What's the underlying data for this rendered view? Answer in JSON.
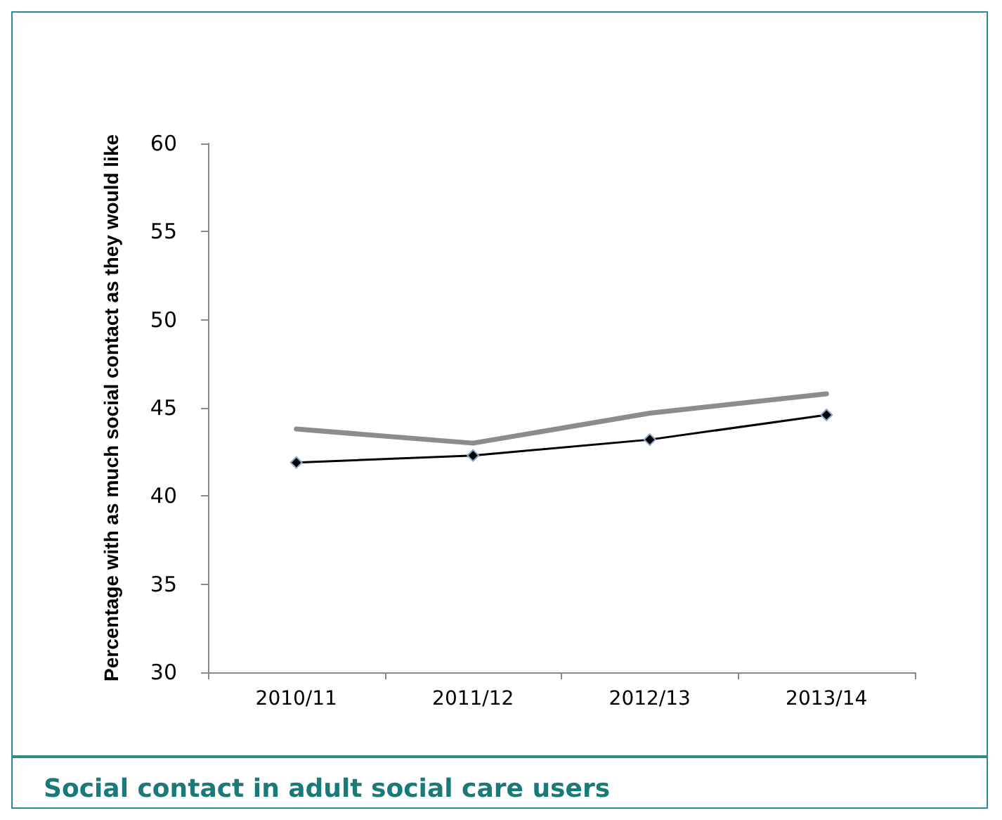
{
  "chart_data": {
    "type": "line",
    "title": "Social contact in adult social care users",
    "ylabel": "Percentage with as much social contact as they would like",
    "categories": [
      "2010/11",
      "2011/12",
      "2012/13",
      "2013/14"
    ],
    "series": [
      {
        "color": "#8c8c8c",
        "marker": "none",
        "values": [
          43.8,
          43.0,
          44.7,
          45.8
        ]
      },
      {
        "color": "#000000",
        "marker": "diamond",
        "values": [
          41.9,
          42.3,
          43.2,
          44.6
        ]
      }
    ],
    "ylim": [
      30,
      60
    ],
    "yticks": [
      30,
      35,
      40,
      45,
      50,
      55,
      60
    ],
    "grid": false
  }
}
